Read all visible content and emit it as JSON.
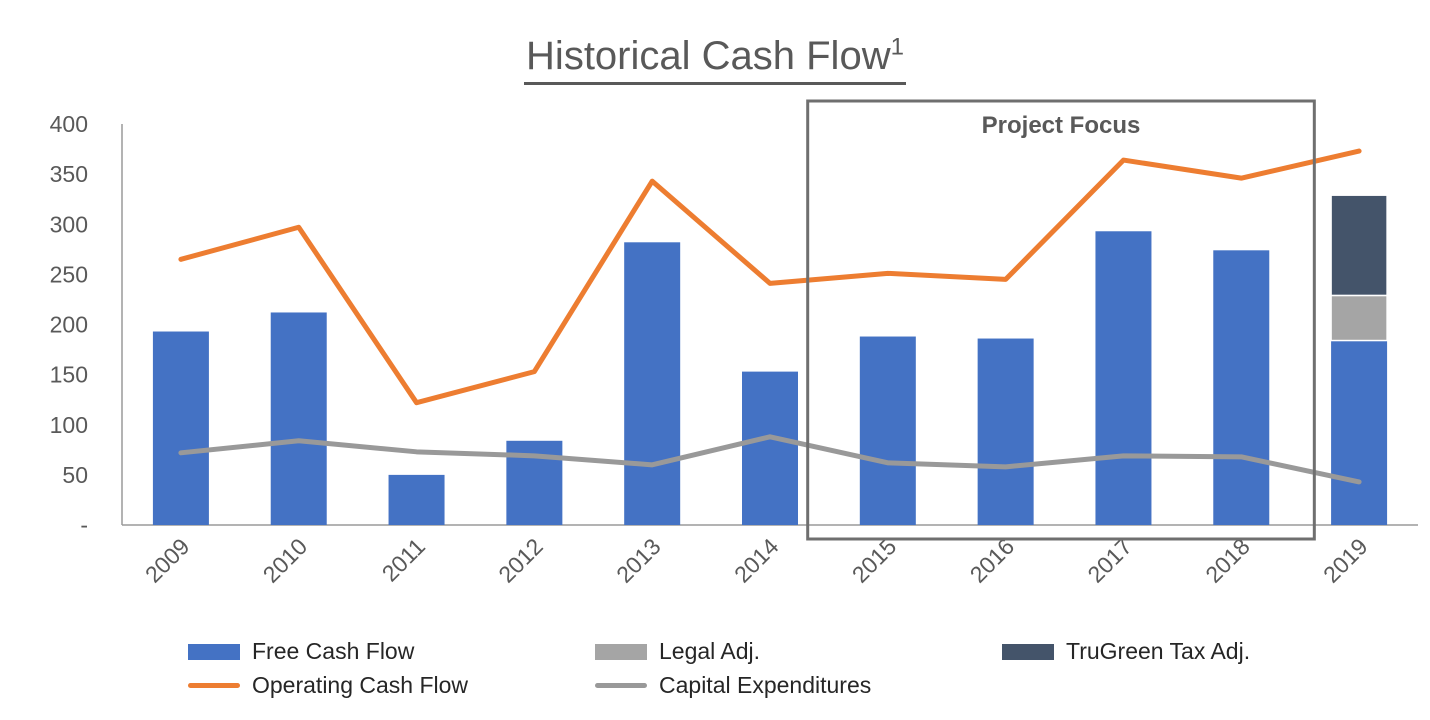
{
  "title": "Historical Cash Flow",
  "title_superscript": "1",
  "annotation": "Project Focus",
  "colors": {
    "free_cash_flow": "#4472C4",
    "legal_adj": "#A5A5A5",
    "trugreen_tax_adj": "#44546A",
    "operating_cash_flow": "#ED7D31",
    "capital_expenditures": "#999999",
    "axis": "#9a9a9a",
    "text": "#595959",
    "annotation_box": "#6f6f6f"
  },
  "chart_data": {
    "type": "bar",
    "title": "Historical Cash Flow",
    "categories": [
      "2009",
      "2010",
      "2011",
      "2012",
      "2013",
      "2014",
      "2015",
      "2016",
      "2017",
      "2018",
      "2019"
    ],
    "ylim": [
      0,
      400
    ],
    "yticks": [
      0,
      50,
      100,
      150,
      200,
      250,
      300,
      350,
      400
    ],
    "ytick_labels": [
      "-",
      "50",
      "100",
      "150",
      "200",
      "250",
      "300",
      "350",
      "400"
    ],
    "grid": false,
    "legend_position": "bottom",
    "highlight": {
      "label": "Project Focus",
      "from": "2015",
      "to": "2019"
    },
    "series": [
      {
        "name": "Free Cash Flow",
        "kind": "bar",
        "stack": "fcf",
        "values": [
          193,
          212,
          50,
          84,
          282,
          153,
          188,
          186,
          293,
          274,
          184
        ]
      },
      {
        "name": "Legal Adj.",
        "kind": "bar",
        "stack": "fcf",
        "values": [
          0,
          0,
          0,
          0,
          0,
          0,
          0,
          0,
          0,
          0,
          45
        ]
      },
      {
        "name": "TruGreen Tax Adj.",
        "kind": "bar",
        "stack": "fcf",
        "values": [
          0,
          0,
          0,
          0,
          0,
          0,
          0,
          0,
          0,
          0,
          100
        ]
      },
      {
        "name": "Operating Cash Flow",
        "kind": "line",
        "values": [
          265,
          297,
          122,
          153,
          343,
          241,
          251,
          245,
          364,
          346,
          373
        ]
      },
      {
        "name": "Capital Expenditures",
        "kind": "line",
        "values": [
          72,
          84,
          73,
          69,
          60,
          88,
          62,
          58,
          69,
          68,
          43
        ]
      }
    ]
  },
  "legend": [
    {
      "label": "Free Cash Flow",
      "type": "box",
      "color": "#4472C4"
    },
    {
      "label": "Legal Adj.",
      "type": "box",
      "color": "#A5A5A5"
    },
    {
      "label": "TruGreen Tax Adj.",
      "type": "box",
      "color": "#44546A"
    },
    {
      "label": "Operating Cash Flow",
      "type": "line",
      "color": "#ED7D31"
    },
    {
      "label": "Capital Expenditures",
      "type": "line",
      "color": "#999999"
    }
  ]
}
